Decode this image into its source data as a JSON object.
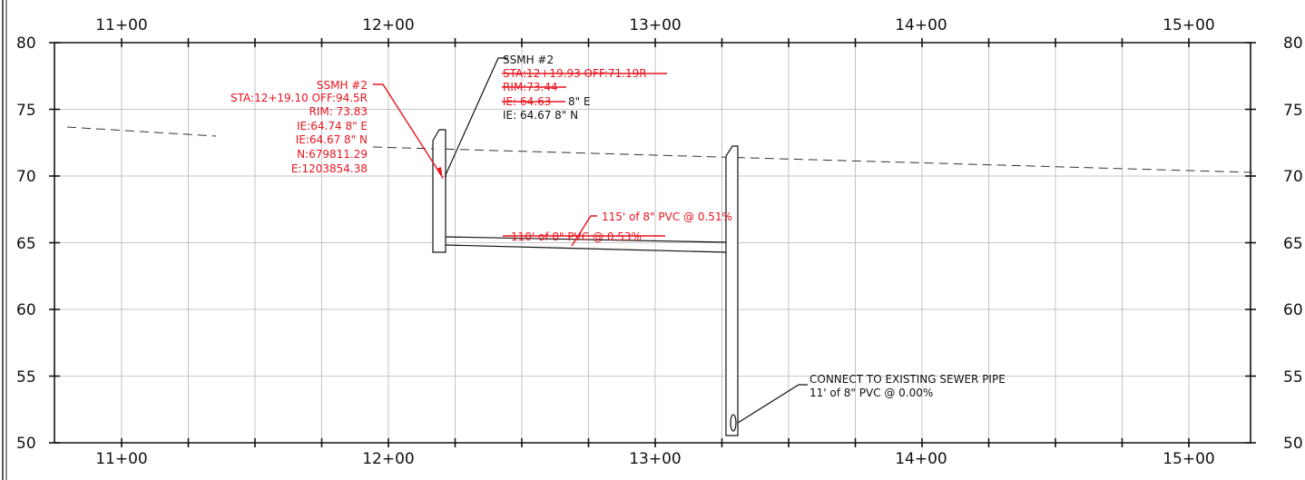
{
  "diagram": {
    "stations": [
      "11+00",
      "12+00",
      "13+00",
      "14+00",
      "15+00"
    ],
    "elevations_left": [
      "80",
      "75",
      "70",
      "65",
      "60",
      "55",
      "50"
    ],
    "elevations_right": [
      "80",
      "75",
      "70",
      "65",
      "60",
      "55",
      "50"
    ],
    "colors": {
      "red": "#e8141e",
      "black": "#111111",
      "grid": "#b5b5b5"
    }
  },
  "annotations": {
    "red_manhole": {
      "title": "SSMH #2",
      "sta": "STA:12+19.10 OFF:94.5R",
      "rim": "RIM: 73.83",
      "ie_e": "IE:64.74 8\" E",
      "ie_n": "IE:64.67 8\" N",
      "northing": "N:679811.29",
      "easting": "E:1203854.38"
    },
    "black_manhole": {
      "title": "SSMH #2",
      "sta_struck": "STA:12+19.93 OFF:71.19R",
      "rim_struck": "RIM:73.44",
      "ie_e_struck": "IE: 64.63",
      "ie_e_suffix": "8\" E",
      "ie_n": "IE: 64.67 8\" N"
    },
    "pipe_new": "115' of 8\" PVC @ 0.51%",
    "pipe_old_struck": "110' of 8\" PVC @ 0.53%",
    "connect_line1": "CONNECT TO EXISTING SEWER PIPE",
    "connect_line2": "11' of 8\" PVC @ 0.00%"
  }
}
